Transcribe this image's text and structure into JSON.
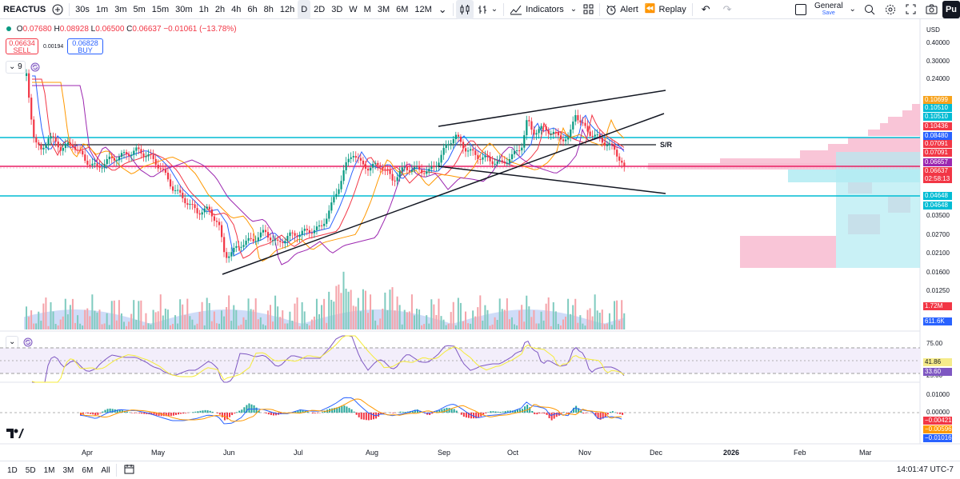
{
  "toolbar": {
    "symbol": "REACTUS",
    "intervals": [
      "30s",
      "1m",
      "3m",
      "5m",
      "15m",
      "30m",
      "1h",
      "2h",
      "4h",
      "6h",
      "8h",
      "12h",
      "D",
      "2D",
      "3D",
      "W",
      "M",
      "3M",
      "6M",
      "12M"
    ],
    "active_interval": "D",
    "indicators_label": "Indicators",
    "alert_label": "Alert",
    "replay_label": "Replay",
    "layout_name": "General",
    "layout_sub": "Save",
    "publish_label": "Pu"
  },
  "legend": {
    "o_label": "O",
    "o_value": "0.07680",
    "h_label": "H",
    "h_value": "0.08928",
    "l_label": "L",
    "l_value": "0.06500",
    "c_label": "C",
    "c_value": "0.06637",
    "change": "−0.01061 (−13.78%)",
    "sell_price": "0.06634",
    "sell_label": "SELL",
    "spread": "0.00194",
    "buy_price": "0.06828",
    "buy_label": "BUY",
    "indicator_count": "9"
  },
  "price_axis": {
    "currency": "USD",
    "ticks": [
      "0.40000",
      "0.30000",
      "0.24000",
      "0.03500",
      "0.02700",
      "0.02100",
      "0.01600",
      "0.01250"
    ],
    "tags": [
      {
        "value": "0.10699",
        "color": "#f7a21b"
      },
      {
        "value": "0.10510",
        "color": "#00bcd4"
      },
      {
        "value": "0.10510",
        "color": "#00bcd4"
      },
      {
        "value": "0.10436",
        "color": "#f23645"
      },
      {
        "value": "0.08480",
        "color": "#2962ff"
      },
      {
        "value": "0.07091",
        "color": "#f23645"
      },
      {
        "value": "0.07091",
        "color": "#f23645"
      },
      {
        "value": "0.06657",
        "color": "#9c27b0"
      },
      {
        "value": "0.06637",
        "color": "#f23645"
      },
      {
        "value": "02:58:13",
        "color": "#f23645"
      },
      {
        "value": "0.04648",
        "color": "#00bcd4"
      },
      {
        "value": "0.04648",
        "color": "#00bcd4"
      }
    ],
    "volume_tags": [
      {
        "value": "1.72M",
        "color": "#f23645"
      },
      {
        "value": "611.6K",
        "color": "#2962ff"
      }
    ],
    "rsi_ticks": [
      "75.00",
      "25.00"
    ],
    "rsi_tags": [
      {
        "value": "41.86",
        "color": "#f5eb8a"
      },
      {
        "value": "33.60",
        "color": "#7e57c2"
      }
    ],
    "macd_ticks": [
      "0.01000",
      "0.00000"
    ],
    "macd_tags": [
      {
        "value": "−0.00421",
        "color": "#f23645"
      },
      {
        "value": "−0.00596",
        "color": "#ff9800"
      },
      {
        "value": "−0.01016",
        "color": "#2962ff"
      }
    ]
  },
  "annotations": {
    "sr_label": "S/R"
  },
  "time_axis": [
    "Apr",
    "May",
    "Jun",
    "Jul",
    "Aug",
    "Sep",
    "Oct",
    "Nov",
    "Dec",
    "2026",
    "Feb",
    "Mar"
  ],
  "bottom": {
    "ranges": [
      "1D",
      "5D",
      "1M",
      "3M",
      "6M",
      "All"
    ],
    "clock": "14:01:47 UTC-7"
  },
  "colors": {
    "up": "#089981",
    "down": "#f23645",
    "accent": "#2962ff",
    "hline_cyan": "#00bcd4",
    "hline_pink": "#e91e63"
  }
}
